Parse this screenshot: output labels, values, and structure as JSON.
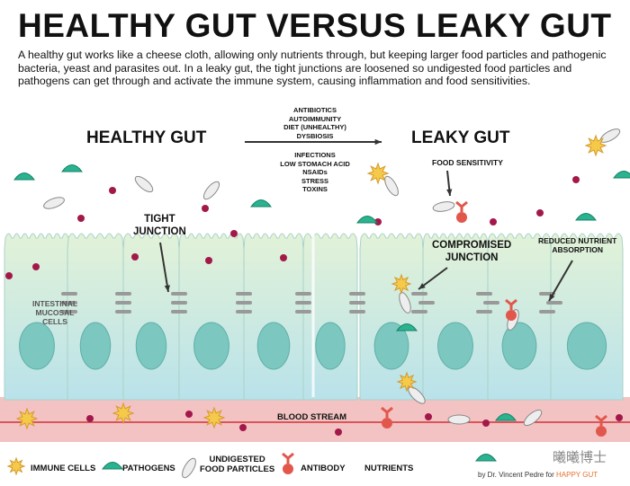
{
  "title": "HEALTHY GUT VERSUS LEAKY GUT",
  "intro": "A healthy gut works like a cheese cloth, allowing only nutrients through, but keeping larger food particles and pathogenic bacteria, yeast and parasites out. In a leaky gut, the tight junctions are loosened so undigested food particles and pathogens can get through and activate the immune system, causing inflammation and food sensitivities.",
  "sections": {
    "healthy": "HEALTHY GUT",
    "leaky": "LEAKY GUT"
  },
  "causes_above": [
    "ANTIBIOTICS",
    "AUTOIMMUNITY",
    "DIET (UNHEALTHY)",
    "DYSBIOSIS"
  ],
  "causes_below": [
    "INFECTIONS",
    "LOW STOMACH ACID",
    "NSAIDs",
    "STRESS",
    "TOXINS"
  ],
  "labels": {
    "tight_junction": "TIGHT\nJUNCTION",
    "intestinal_cells": "INTESTINAL\nMUCOSAL\nCELLS",
    "food_sensitivity": "FOOD SENSITIVITY",
    "compromised_junction": "COMPROMISED\nJUNCTION",
    "reduced_absorption": "REDUCED NUTRIENT\nABSORPTION",
    "blood_stream": "BLOOD STREAM"
  },
  "legend": [
    {
      "icon": "immune-cell-icon",
      "label": "IMMUNE CELLS"
    },
    {
      "icon": "pathogen-icon",
      "label": "PATHOGENS"
    },
    {
      "icon": "food-particle-icon",
      "label": "UNDIGESTED\nFOOD PARTICLES"
    },
    {
      "icon": "antibody-icon",
      "label": "ANTIBODY"
    },
    {
      "icon": "nutrient-icon",
      "label": "NUTRIENTS"
    }
  ],
  "watermark": "曦曦博士",
  "credit": {
    "prefix": "by Dr. Vincent Pedre for ",
    "brand": "HAPPY GUT"
  },
  "colors": {
    "cell": "#d3ecd8",
    "nucleus": "#7cc7bf",
    "blood": "#f3c3c3",
    "nutrient": "#a3184a",
    "pathogen": "#2bb38f",
    "immune": "#f5c94a",
    "antibody": "#e2574c",
    "brand": "#e8702a"
  }
}
